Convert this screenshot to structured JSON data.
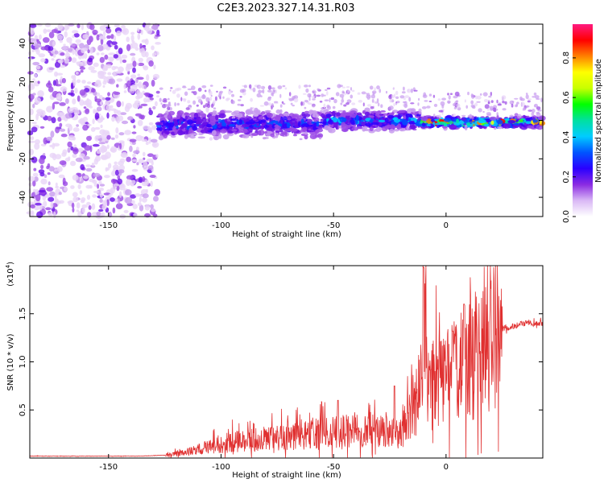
{
  "title": "C2E3.2023.327.14.31.R03",
  "chart_data": [
    {
      "type": "heatmap",
      "xlabel": "Height of straight line (km)",
      "ylabel": "Frequency (Hz)",
      "xlim": [
        -185,
        43
      ],
      "ylim": [
        -50,
        50
      ],
      "xticks": [
        -150,
        -100,
        -50,
        0
      ],
      "yticks": [
        -40,
        -20,
        0,
        20,
        40
      ],
      "colorbar": {
        "label": "Normalized spectral amplitude",
        "range": [
          0,
          0.97
        ],
        "ticks": [
          "0.0",
          "0.2",
          "0.4",
          "0.6",
          "0.8"
        ],
        "colors": [
          "#ffffff",
          "#d9b8f5",
          "#8a2be2",
          "#2a00ff",
          "#0055ff",
          "#00ccff",
          "#00e0a0",
          "#00ff00",
          "#c8ff00",
          "#ffff00",
          "#ff8000",
          "#ff0000",
          "#ff1a80"
        ]
      },
      "regions": [
        {
          "name": "noise",
          "x": [
            -185,
            -128
          ],
          "y": [
            -50,
            50
          ],
          "amplitude": 0.18
        },
        {
          "name": "band",
          "x": [
            -128,
            -55
          ],
          "y_center": -2,
          "half_width": 8,
          "amplitude": 0.35
        },
        {
          "name": "band",
          "x": [
            -55,
            -12
          ],
          "y_center": 0,
          "half_width": 6,
          "amplitude": 0.4
        },
        {
          "name": "band",
          "x": [
            -12,
            43
          ],
          "y_center": -1,
          "half_width": 3,
          "amplitude": 0.6
        }
      ]
    },
    {
      "type": "line",
      "xlabel": "Height of straight line (km)",
      "ylabel": "SNR (10 * v/v)",
      "yscale_label": "(x10",
      "yscale_exp": "4",
      "yscale_close": ")",
      "xlim": [
        -185,
        43
      ],
      "ylim": [
        0,
        2.0
      ],
      "xticks": [
        -150,
        -100,
        -50,
        0
      ],
      "yticks": [
        "0.5",
        "1.0",
        "1.5"
      ],
      "ytick_values": [
        0.5,
        1.0,
        1.5
      ],
      "color": "#e03030",
      "x": [
        -185,
        -170,
        -150,
        -135,
        -125,
        -115,
        -105,
        -100,
        -90,
        -80,
        -70,
        -60,
        -50,
        -40,
        -30,
        -20,
        -15,
        -12,
        -10,
        -9,
        -8,
        -5,
        0,
        5,
        10,
        15,
        20,
        25,
        30,
        35,
        43
      ],
      "y": [
        0.02,
        0.02,
        0.02,
        0.02,
        0.03,
        0.06,
        0.12,
        0.15,
        0.18,
        0.2,
        0.22,
        0.24,
        0.26,
        0.3,
        0.28,
        0.25,
        0.5,
        0.7,
        1.1,
        1.6,
        0.9,
        0.75,
        0.85,
        0.9,
        1.0,
        1.15,
        1.3,
        1.34,
        1.37,
        1.4,
        1.4
      ],
      "peaks": [
        {
          "x": -10,
          "y": 1.98
        },
        {
          "x": 8,
          "y": 1.6
        },
        {
          "x": 3,
          "y": 1.32
        },
        {
          "x": -23,
          "y": 0.75
        },
        {
          "x": -48,
          "y": 0.6
        }
      ]
    }
  ]
}
